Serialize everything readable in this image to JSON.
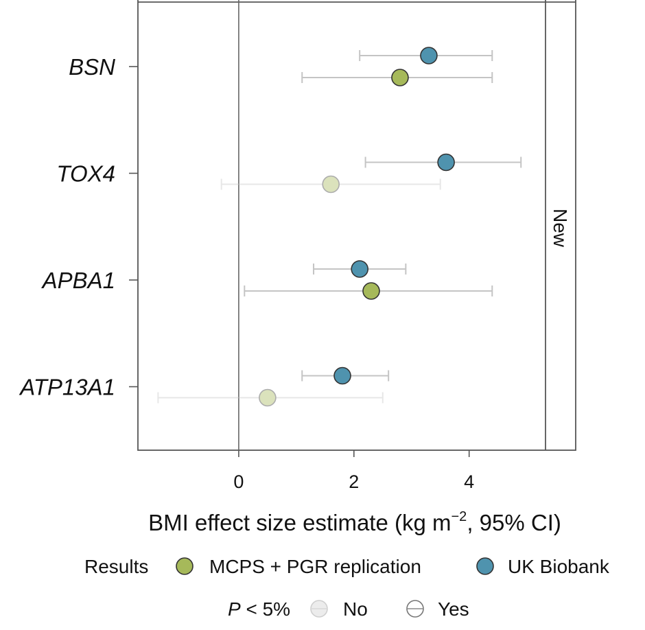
{
  "chart_data": {
    "type": "scatter",
    "subtype": "forest-plot",
    "categories": [
      "BSN",
      "TOX4",
      "APBA1",
      "ATP13A1"
    ],
    "xlabel_main": "BMI effect size estimate (kg m",
    "xlabel_sup": "−2",
    "xlabel_tail": ", 95% CI)",
    "xlim": [
      -1.75,
      5.85
    ],
    "xticks": [
      0,
      2,
      4
    ],
    "xtick_labels": [
      "0",
      "2",
      "4"
    ],
    "reference_line": 0,
    "strip_label": "New",
    "grid": false,
    "colors": {
      "mcps": "#a6b95a",
      "ukb": "#4f93ae"
    },
    "series": [
      {
        "name": "UK Biobank",
        "key": "ukb",
        "values": [
          3.3,
          3.6,
          2.1,
          1.8
        ],
        "ci_low": [
          2.1,
          2.2,
          1.3,
          1.1
        ],
        "ci_high": [
          4.4,
          4.9,
          2.9,
          2.6
        ],
        "significant": [
          true,
          true,
          true,
          true
        ]
      },
      {
        "name": "MCPS + PGR replication",
        "key": "mcps",
        "values": [
          2.8,
          1.6,
          2.3,
          0.5
        ],
        "ci_low": [
          1.1,
          -0.3,
          0.1,
          -1.4
        ],
        "ci_high": [
          4.4,
          3.5,
          4.4,
          2.5
        ],
        "significant": [
          true,
          false,
          true,
          false
        ]
      }
    ],
    "legend": {
      "placement": "bottom",
      "title": "Results",
      "items": [
        "MCPS + PGR replication",
        "UK Biobank"
      ],
      "p_title_italic": "P",
      "p_title_rest": " < 5%",
      "p_items": [
        "No",
        "Yes"
      ]
    }
  }
}
